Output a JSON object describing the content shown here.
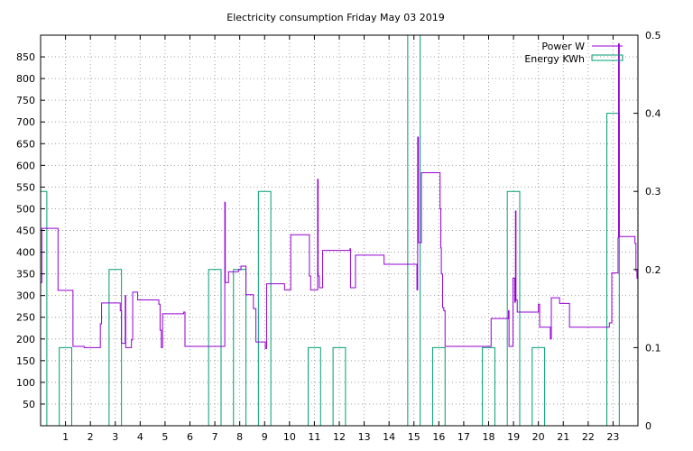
{
  "chart_data": {
    "type": "line",
    "title": "Electricity consumption Friday May 03 2019",
    "x_ticks": [
      "1",
      "2",
      "3",
      "4",
      "5",
      "6",
      "7",
      "8",
      "9",
      "10",
      "11",
      "12",
      "13",
      "14",
      "15",
      "16",
      "17",
      "18",
      "19",
      "20",
      "21",
      "22",
      "23"
    ],
    "xlim": [
      0,
      24
    ],
    "ylim": [
      0,
      900
    ],
    "y_ticks": [
      "50",
      "100",
      "150",
      "200",
      "250",
      "300",
      "350",
      "400",
      "450",
      "500",
      "550",
      "600",
      "650",
      "700",
      "750",
      "800",
      "850"
    ],
    "y2lim": [
      0,
      0.5
    ],
    "y2_ticks": [
      "0",
      "0.1",
      "0.2",
      "0.3",
      "0.4",
      "0.5"
    ],
    "grid": true,
    "legend_position": "top-right",
    "legend": {
      "power": "Power W",
      "energy": "Energy KWh"
    },
    "colors": {
      "power": "#9400d3",
      "energy": "#009e73"
    },
    "series": [
      {
        "name": "Power W",
        "axis": "left",
        "style": "step",
        "points": [
          [
            0.0,
            330
          ],
          [
            0.05,
            455
          ],
          [
            0.65,
            455
          ],
          [
            0.7,
            312
          ],
          [
            1.25,
            312
          ],
          [
            1.3,
            183
          ],
          [
            1.7,
            183
          ],
          [
            1.75,
            180
          ],
          [
            2.35,
            180
          ],
          [
            2.4,
            235
          ],
          [
            2.45,
            283
          ],
          [
            3.15,
            283
          ],
          [
            3.2,
            265
          ],
          [
            3.25,
            190
          ],
          [
            3.35,
            190
          ],
          [
            3.4,
            300
          ],
          [
            3.42,
            180
          ],
          [
            3.6,
            180
          ],
          [
            3.65,
            198
          ],
          [
            3.7,
            308
          ],
          [
            3.85,
            308
          ],
          [
            3.9,
            290
          ],
          [
            4.7,
            290
          ],
          [
            4.75,
            280
          ],
          [
            4.8,
            220
          ],
          [
            4.85,
            180
          ],
          [
            4.9,
            258
          ],
          [
            5.7,
            258
          ],
          [
            5.75,
            262
          ],
          [
            5.8,
            183
          ],
          [
            7.35,
            183
          ],
          [
            7.4,
            515
          ],
          [
            7.42,
            330
          ],
          [
            7.55,
            355
          ],
          [
            7.9,
            355
          ],
          [
            7.95,
            360
          ],
          [
            8.05,
            368
          ],
          [
            8.2,
            368
          ],
          [
            8.25,
            302
          ],
          [
            8.5,
            302
          ],
          [
            8.55,
            270
          ],
          [
            8.65,
            193
          ],
          [
            9.0,
            193
          ],
          [
            9.03,
            178
          ],
          [
            9.08,
            327
          ],
          [
            9.75,
            327
          ],
          [
            9.8,
            313
          ],
          [
            10.0,
            313
          ],
          [
            10.05,
            440
          ],
          [
            10.75,
            440
          ],
          [
            10.8,
            345
          ],
          [
            10.85,
            313
          ],
          [
            11.1,
            313
          ],
          [
            11.13,
            568
          ],
          [
            11.15,
            345
          ],
          [
            11.2,
            318
          ],
          [
            11.3,
            318
          ],
          [
            11.33,
            404
          ],
          [
            12.4,
            404
          ],
          [
            12.43,
            408
          ],
          [
            12.45,
            318
          ],
          [
            12.6,
            318
          ],
          [
            12.65,
            393
          ],
          [
            13.75,
            393
          ],
          [
            13.8,
            372
          ],
          [
            15.1,
            372
          ],
          [
            15.12,
            313
          ],
          [
            15.15,
            665
          ],
          [
            15.18,
            422
          ],
          [
            15.25,
            422
          ],
          [
            15.3,
            583
          ],
          [
            16.0,
            583
          ],
          [
            16.05,
            500
          ],
          [
            16.08,
            410
          ],
          [
            16.1,
            350
          ],
          [
            16.15,
            272
          ],
          [
            16.2,
            265
          ],
          [
            16.25,
            183
          ],
          [
            18.05,
            183
          ],
          [
            18.1,
            247
          ],
          [
            18.75,
            247
          ],
          [
            18.8,
            265
          ],
          [
            18.82,
            183
          ],
          [
            18.95,
            183
          ],
          [
            18.98,
            340
          ],
          [
            19.05,
            285
          ],
          [
            19.08,
            495
          ],
          [
            19.1,
            290
          ],
          [
            19.15,
            262
          ],
          [
            19.95,
            262
          ],
          [
            20.0,
            280
          ],
          [
            20.05,
            227
          ],
          [
            20.45,
            227
          ],
          [
            20.48,
            200
          ],
          [
            20.52,
            295
          ],
          [
            20.8,
            295
          ],
          [
            20.85,
            282
          ],
          [
            21.2,
            282
          ],
          [
            21.25,
            227
          ],
          [
            22.8,
            227
          ],
          [
            22.85,
            237
          ],
          [
            22.95,
            352
          ],
          [
            23.15,
            352
          ],
          [
            23.2,
            433
          ],
          [
            23.22,
            880
          ],
          [
            23.25,
            436
          ],
          [
            23.85,
            436
          ],
          [
            23.88,
            420
          ],
          [
            23.92,
            357
          ],
          [
            23.96,
            340
          ],
          [
            24.0,
            336
          ]
        ]
      },
      {
        "name": "Energy KWh",
        "axis": "right",
        "style": "bars",
        "width": 0.5,
        "x": [
          0.0,
          1.0,
          2.0,
          3.0,
          4.0,
          5.0,
          6.0,
          7.0,
          8.0,
          9.0,
          10.0,
          11.0,
          12.0,
          13.0,
          14.0,
          15.0,
          16.0,
          17.0,
          18.0,
          19.0,
          20.0,
          21.0,
          22.0,
          23.0
        ],
        "values": [
          0.3,
          0.1,
          0.0,
          0.2,
          0.0,
          0.0,
          0.0,
          0.2,
          0.2,
          0.3,
          0.0,
          0.1,
          0.1,
          0.0,
          0.0,
          0.5,
          0.1,
          0.0,
          0.1,
          0.3,
          0.1,
          0.0,
          0.0,
          0.4
        ]
      }
    ]
  }
}
